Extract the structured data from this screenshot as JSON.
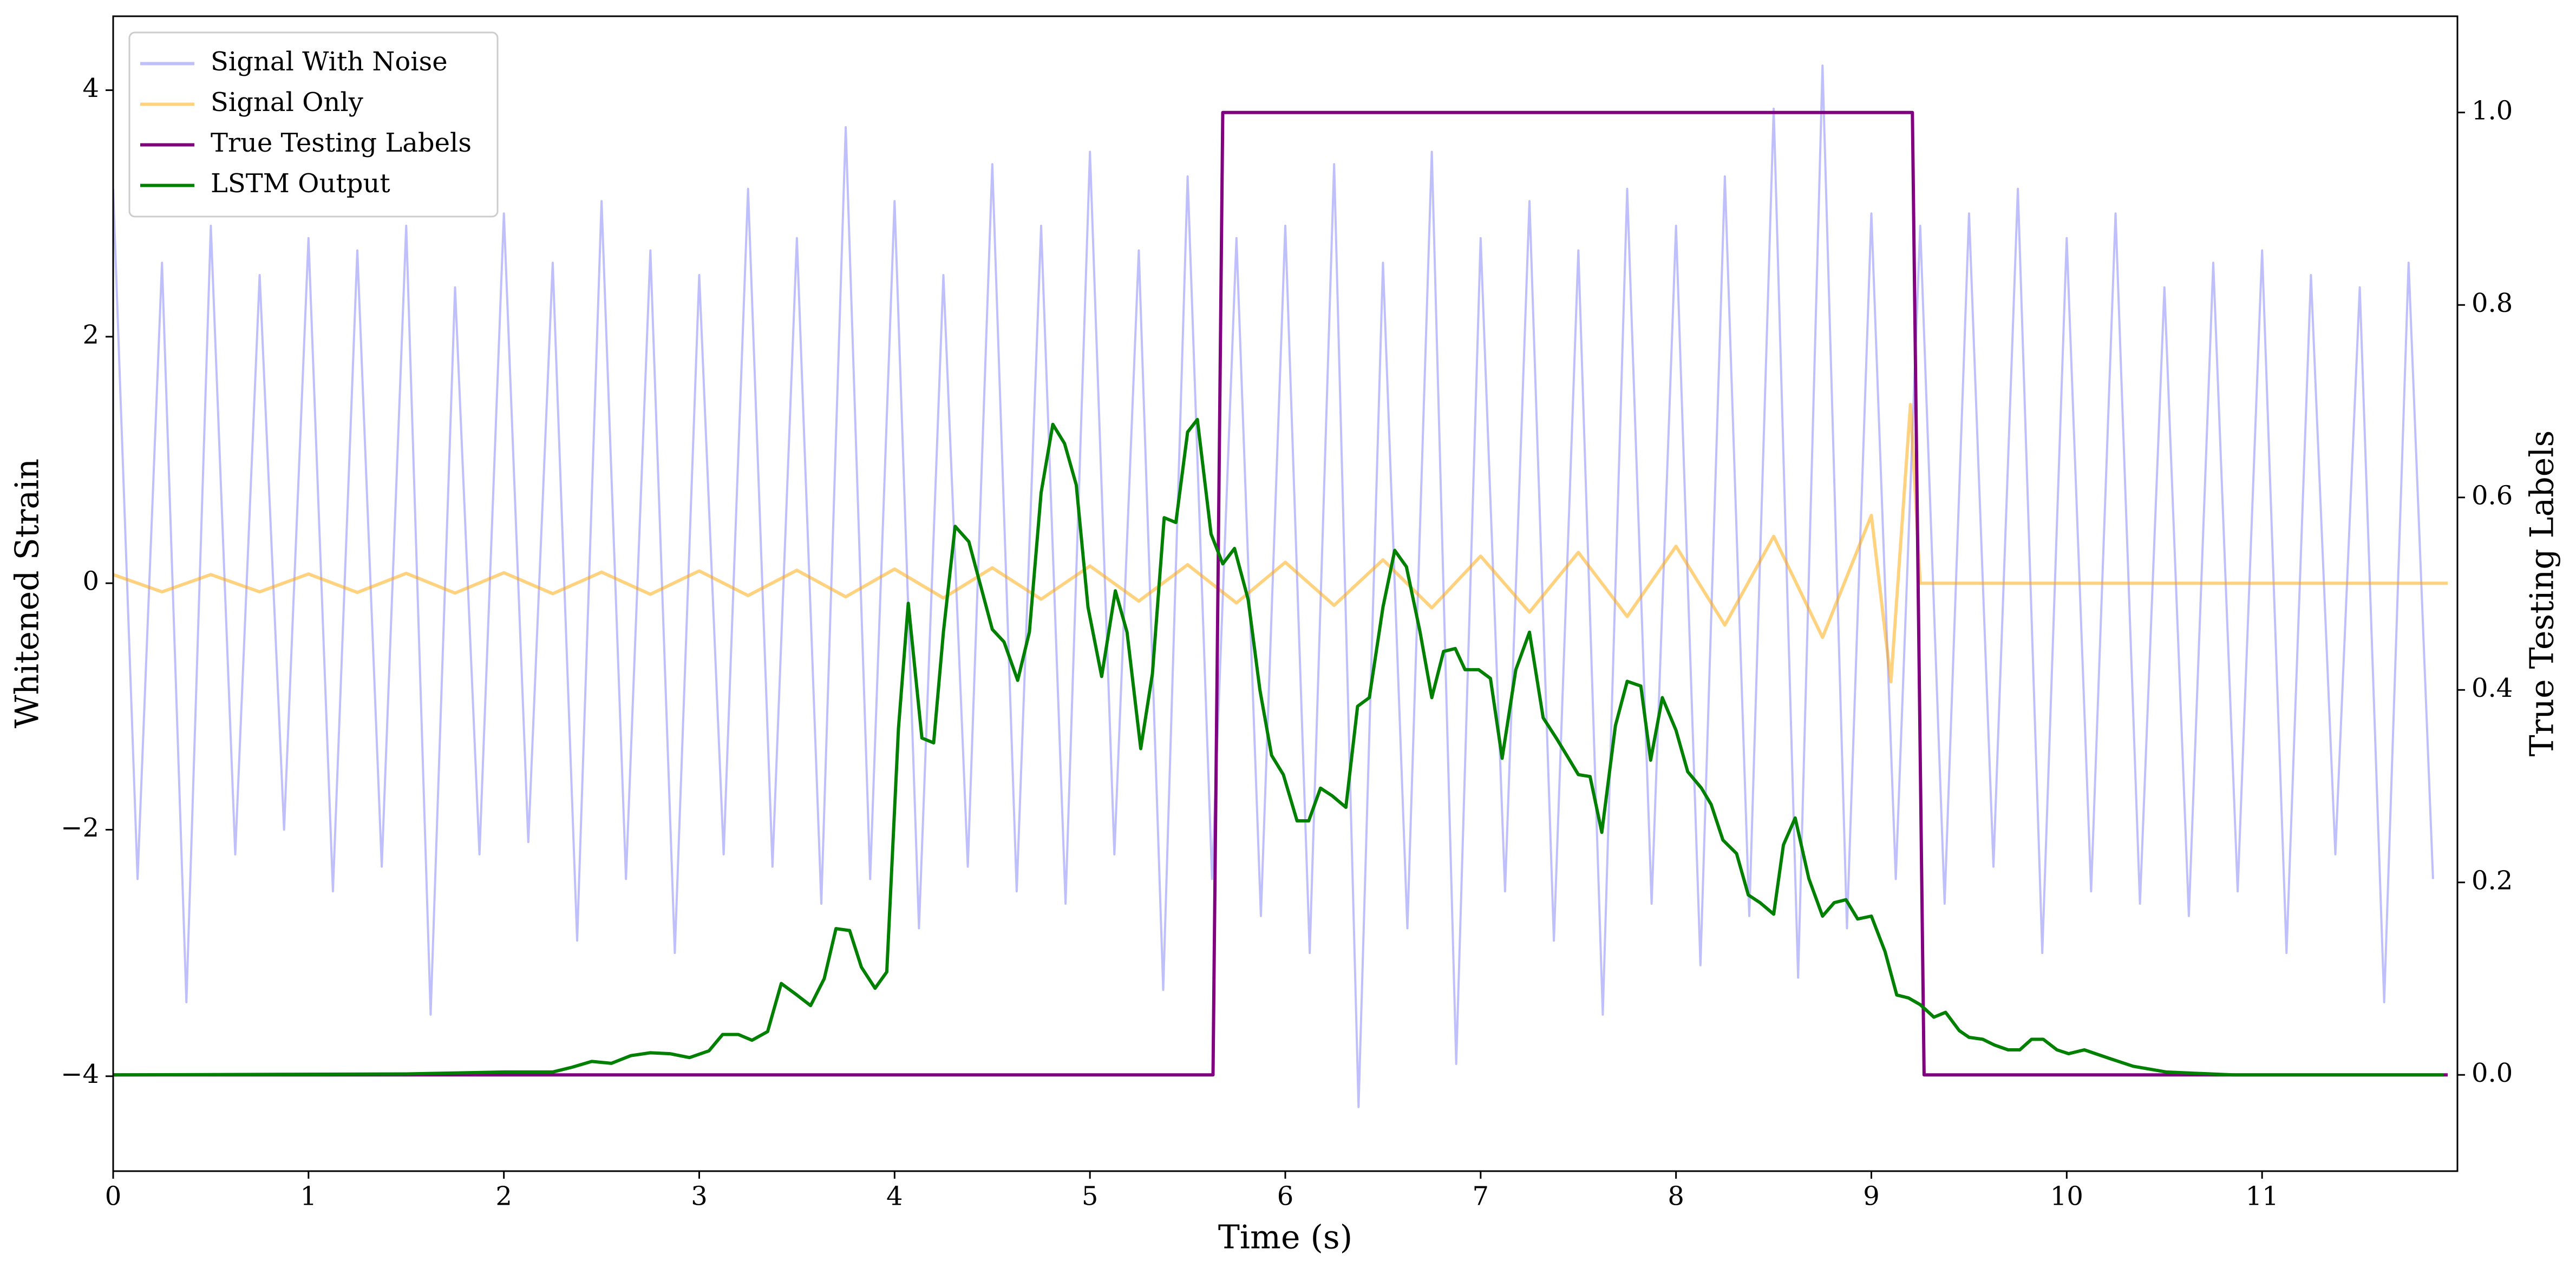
{
  "chart_data": {
    "type": "line",
    "xlabel": "Time (s)",
    "ylabel": "Whitened Strain",
    "y2label": "True Testing Labels",
    "xlim": [
      0,
      12
    ],
    "ylim": [
      -4.77,
      4.6
    ],
    "y2lim": [
      -0.1,
      1.1
    ],
    "xticks": [
      0,
      1,
      2,
      3,
      4,
      5,
      6,
      7,
      8,
      9,
      10,
      11
    ],
    "yticks": [
      {
        "value": -4,
        "label": "−4"
      },
      {
        "value": -2,
        "label": "−2"
      },
      0,
      2,
      4
    ],
    "y2ticks": [
      {
        "value": 0,
        "label": "0.0"
      },
      0.2,
      0.4,
      0.6,
      0.8,
      {
        "value": 1,
        "label": "1.0"
      }
    ],
    "legend": "upper left",
    "series": [
      {
        "name": "Signal With Noise",
        "color": "#8080f8",
        "axis": "y",
        "x": [
          0,
          0.125,
          0.25,
          0.375,
          0.5,
          0.625,
          0.75,
          0.875,
          1,
          1.125,
          1.25,
          1.375,
          1.5,
          1.625,
          1.75,
          1.875,
          2,
          2.125,
          2.25,
          2.375,
          2.5,
          2.625,
          2.75,
          2.875,
          3,
          3.125,
          3.25,
          3.375,
          3.5,
          3.625,
          3.75,
          3.875,
          4,
          4.125,
          4.25,
          4.375,
          4.5,
          4.625,
          4.75,
          4.875,
          5,
          5.125,
          5.25,
          5.375,
          5.5,
          5.625,
          5.75,
          5.875,
          6,
          6.125,
          6.25,
          6.375,
          6.5,
          6.625,
          6.75,
          6.875,
          7,
          7.125,
          7.25,
          7.375,
          7.5,
          7.625,
          7.75,
          7.875,
          8,
          8.125,
          8.25,
          8.375,
          8.5,
          8.625,
          8.75,
          8.875,
          9,
          9.125,
          9.25,
          9.375,
          9.5,
          9.625,
          9.75,
          9.875,
          10,
          10.125,
          10.25,
          10.375,
          10.5,
          10.625,
          10.75,
          10.875,
          11,
          11.125,
          11.25,
          11.375,
          11.5,
          11.625,
          11.75,
          11.875
        ],
        "values": [
          3.2,
          -2.4,
          2.6,
          -3.4,
          2.9,
          -2.2,
          2.5,
          -2.0,
          2.8,
          -2.5,
          2.7,
          -2.3,
          2.9,
          -3.5,
          2.4,
          -2.2,
          3.0,
          -2.1,
          2.6,
          -2.9,
          3.1,
          -2.4,
          2.7,
          -3.0,
          2.5,
          -2.2,
          3.2,
          -2.3,
          2.8,
          -2.6,
          3.7,
          -2.4,
          3.1,
          -2.8,
          2.5,
          -2.3,
          3.4,
          -2.5,
          2.9,
          -2.6,
          3.5,
          -2.2,
          2.7,
          -3.3,
          3.3,
          -2.4,
          2.8,
          -2.7,
          2.9,
          -3.0,
          3.4,
          -4.25,
          2.6,
          -2.8,
          3.5,
          -3.9,
          2.8,
          -2.5,
          3.1,
          -2.9,
          2.7,
          -3.5,
          3.2,
          -2.6,
          2.9,
          -3.1,
          3.3,
          -2.7,
          3.85,
          -3.2,
          4.2,
          -2.8,
          3.0,
          -2.4,
          2.9,
          -2.6,
          3.0,
          -2.3,
          3.2,
          -3.0,
          2.8,
          -2.5,
          3.0,
          -2.6,
          2.4,
          -2.7,
          2.6,
          -2.5,
          2.7,
          -3.0,
          2.5,
          -2.2,
          2.4,
          -3.4,
          2.6,
          -2.4
        ]
      },
      {
        "name": "Signal Only",
        "color": "#ffa500",
        "axis": "y",
        "x": [
          0,
          0.25,
          0.5,
          0.75,
          1,
          1.25,
          1.5,
          1.75,
          2,
          2.25,
          2.5,
          2.75,
          3,
          3.25,
          3.5,
          3.75,
          4,
          4.25,
          4.5,
          4.75,
          5,
          5.25,
          5.5,
          5.75,
          6,
          6.25,
          6.5,
          6.75,
          7,
          7.25,
          7.5,
          7.75,
          8,
          8.25,
          8.5,
          8.75,
          9,
          9.1,
          9.2,
          9.25,
          9.3,
          11.95
        ],
        "values": [
          0.07,
          -0.07,
          0.07,
          -0.07,
          0.075,
          -0.075,
          0.08,
          -0.08,
          0.085,
          -0.085,
          0.09,
          -0.09,
          0.1,
          -0.1,
          0.105,
          -0.11,
          0.115,
          -0.12,
          0.125,
          -0.13,
          0.14,
          -0.145,
          0.15,
          -0.16,
          0.17,
          -0.18,
          0.19,
          -0.2,
          0.22,
          -0.235,
          0.25,
          -0.27,
          0.3,
          -0.34,
          0.38,
          -0.44,
          0.55,
          -0.8,
          1.45,
          0,
          0,
          0
        ]
      },
      {
        "name": "True Testing Labels",
        "color": "#800080",
        "axis": "y2",
        "x": [
          0,
          5.63,
          5.68,
          9.21,
          9.27,
          11.95
        ],
        "values": [
          0,
          0,
          1,
          1,
          0,
          0
        ]
      },
      {
        "name": "LSTM Output",
        "color": "#008000",
        "axis": "y2",
        "x": [
          0,
          1.5,
          2.0,
          2.25,
          2.35,
          2.45,
          2.55,
          2.65,
          2.75,
          2.85,
          2.95,
          3.05,
          3.12,
          3.2,
          3.27,
          3.35,
          3.42,
          3.5,
          3.57,
          3.64,
          3.7,
          3.77,
          3.83,
          3.9,
          3.96,
          4.02,
          4.07,
          4.14,
          4.2,
          4.25,
          4.31,
          4.38,
          4.5,
          4.56,
          4.63,
          4.69,
          4.75,
          4.81,
          4.87,
          4.93,
          4.99,
          5.06,
          5.13,
          5.19,
          5.26,
          5.32,
          5.38,
          5.44,
          5.5,
          5.55,
          5.62,
          5.68,
          5.74,
          5.81,
          5.87,
          5.93,
          5.99,
          6.06,
          6.12,
          6.18,
          6.24,
          6.31,
          6.37,
          6.43,
          6.5,
          6.56,
          6.62,
          6.69,
          6.75,
          6.81,
          6.87,
          6.92,
          6.99,
          7.05,
          7.11,
          7.18,
          7.25,
          7.32,
          7.39,
          7.45,
          7.5,
          7.56,
          7.62,
          7.69,
          7.75,
          7.82,
          7.87,
          7.93,
          8.0,
          8.06,
          8.13,
          8.18,
          8.24,
          8.31,
          8.37,
          8.43,
          8.5,
          8.55,
          8.61,
          8.68,
          8.75,
          8.81,
          8.87,
          8.93,
          9.0,
          9.07,
          9.13,
          9.19,
          9.25,
          9.32,
          9.38,
          9.45,
          9.5,
          9.57,
          9.63,
          9.7,
          9.76,
          9.82,
          9.88,
          9.95,
          10.01,
          10.09,
          10.22,
          10.34,
          10.51,
          10.85,
          11.93
        ],
        "values": [
          0,
          0.001,
          0.003,
          0.003,
          0.008,
          0.014,
          0.012,
          0.02,
          0.023,
          0.022,
          0.018,
          0.025,
          0.042,
          0.042,
          0.036,
          0.045,
          0.095,
          0.083,
          0.072,
          0.1,
          0.152,
          0.15,
          0.112,
          0.09,
          0.107,
          0.36,
          0.49,
          0.35,
          0.345,
          0.46,
          0.57,
          0.554,
          0.463,
          0.45,
          0.41,
          0.46,
          0.605,
          0.676,
          0.656,
          0.613,
          0.486,
          0.414,
          0.503,
          0.46,
          0.339,
          0.417,
          0.579,
          0.574,
          0.668,
          0.681,
          0.562,
          0.531,
          0.547,
          0.494,
          0.4,
          0.332,
          0.312,
          0.264,
          0.264,
          0.298,
          0.29,
          0.278,
          0.383,
          0.392,
          0.486,
          0.545,
          0.528,
          0.46,
          0.392,
          0.44,
          0.443,
          0.421,
          0.421,
          0.412,
          0.329,
          0.421,
          0.46,
          0.371,
          0.349,
          0.329,
          0.312,
          0.31,
          0.252,
          0.363,
          0.409,
          0.404,
          0.327,
          0.392,
          0.358,
          0.315,
          0.298,
          0.281,
          0.244,
          0.23,
          0.187,
          0.179,
          0.167,
          0.239,
          0.267,
          0.204,
          0.165,
          0.179,
          0.182,
          0.162,
          0.165,
          0.128,
          0.083,
          0.08,
          0.073,
          0.06,
          0.065,
          0.046,
          0.039,
          0.037,
          0.031,
          0.026,
          0.026,
          0.037,
          0.037,
          0.026,
          0.022,
          0.026,
          0.017,
          0.009,
          0.003,
          0,
          0
        ]
      }
    ]
  }
}
